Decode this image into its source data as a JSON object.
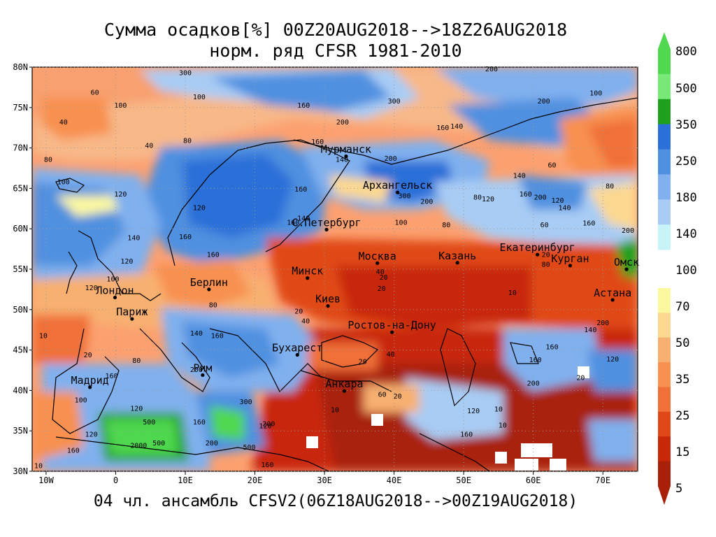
{
  "title_line1": "Сумма осадков[%] 00Z20AUG2018-->18Z26AUG2018",
  "title_line2": "норм. ряд CFSR 1981-2010",
  "footer": "04 чл. ансамбль CFSV2(06Z18AUG2018-->00Z19AUG2018)",
  "map": {
    "lon_range": [
      -12,
      75
    ],
    "lat_range": [
      30,
      80
    ],
    "lon_ticks": [
      {
        "value": -10,
        "label": "10W"
      },
      {
        "value": 0,
        "label": "0"
      },
      {
        "value": 10,
        "label": "10E"
      },
      {
        "value": 20,
        "label": "20E"
      },
      {
        "value": 30,
        "label": "30E"
      },
      {
        "value": 40,
        "label": "40E"
      },
      {
        "value": 50,
        "label": "50E"
      },
      {
        "value": 60,
        "label": "60E"
      },
      {
        "value": 70,
        "label": "70E"
      }
    ],
    "lat_ticks": [
      {
        "value": 80,
        "label": "80N"
      },
      {
        "value": 75,
        "label": "75N"
      },
      {
        "value": 70,
        "label": "70N"
      },
      {
        "value": 65,
        "label": "65N"
      },
      {
        "value": 60,
        "label": "60N"
      },
      {
        "value": 55,
        "label": "55N"
      },
      {
        "value": 50,
        "label": "50N"
      },
      {
        "value": 45,
        "label": "45N"
      },
      {
        "value": 40,
        "label": "40N"
      },
      {
        "value": 35,
        "label": "35N"
      },
      {
        "value": 30,
        "label": "30N"
      }
    ],
    "cities": [
      {
        "name": "Мурманск",
        "lon": 33.1,
        "lat": 68.97
      },
      {
        "name": "Архангельск",
        "lon": 40.5,
        "lat": 64.5
      },
      {
        "name": "С.Петербург",
        "lon": 30.3,
        "lat": 59.9
      },
      {
        "name": "Москва",
        "lon": 37.6,
        "lat": 55.75
      },
      {
        "name": "Казань",
        "lon": 49.1,
        "lat": 55.8
      },
      {
        "name": "Екатеринбург",
        "lon": 60.6,
        "lat": 56.8
      },
      {
        "name": "Курган",
        "lon": 65.3,
        "lat": 55.45
      },
      {
        "name": "Омск",
        "lon": 73.4,
        "lat": 54.99
      },
      {
        "name": "Астана",
        "lon": 71.4,
        "lat": 51.2
      },
      {
        "name": "Минск",
        "lon": 27.56,
        "lat": 53.9
      },
      {
        "name": "Киев",
        "lon": 30.5,
        "lat": 50.45
      },
      {
        "name": "Берлин",
        "lon": 13.4,
        "lat": 52.5
      },
      {
        "name": "Лондон",
        "lon": -0.1,
        "lat": 51.5
      },
      {
        "name": "Париж",
        "lon": 2.35,
        "lat": 48.85
      },
      {
        "name": "Ростов-на-Дону",
        "lon": 39.7,
        "lat": 47.2
      },
      {
        "name": "Бухарест",
        "lon": 26.1,
        "lat": 44.4
      },
      {
        "name": "Рим",
        "lon": 12.5,
        "lat": 41.9
      },
      {
        "name": "Мадрид",
        "lon": -3.7,
        "lat": 40.4
      },
      {
        "name": "Анкара",
        "lon": 32.85,
        "lat": 39.93
      }
    ],
    "contour_labels": [
      {
        "text": "300",
        "lon": 10,
        "lat": 79
      },
      {
        "text": "200",
        "lon": 54,
        "lat": 79.5
      },
      {
        "text": "60",
        "lon": -3,
        "lat": 76.6
      },
      {
        "text": "100",
        "lon": 0.7,
        "lat": 75
      },
      {
        "text": "100",
        "lon": 12,
        "lat": 76
      },
      {
        "text": "160",
        "lon": 27,
        "lat": 75
      },
      {
        "text": "300",
        "lon": 40,
        "lat": 75.5
      },
      {
        "text": "200",
        "lon": 61.5,
        "lat": 75.5
      },
      {
        "text": "100",
        "lon": 69,
        "lat": 76.5
      },
      {
        "text": "40",
        "lon": -7.5,
        "lat": 72.9
      },
      {
        "text": "40",
        "lon": 4.8,
        "lat": 70
      },
      {
        "text": "80",
        "lon": 10.3,
        "lat": 70.6
      },
      {
        "text": "200",
        "lon": 32.6,
        "lat": 72.9
      },
      {
        "text": "140",
        "lon": 49,
        "lat": 72.4
      },
      {
        "text": "160",
        "lon": 47,
        "lat": 72.2
      },
      {
        "text": "160",
        "lon": 29,
        "lat": 70.5
      },
      {
        "text": "140",
        "lon": 32.5,
        "lat": 68.3
      },
      {
        "text": "200",
        "lon": 39.5,
        "lat": 68.4
      },
      {
        "text": "60",
        "lon": 62.7,
        "lat": 67.6
      },
      {
        "text": "140",
        "lon": 58,
        "lat": 66.3
      },
      {
        "text": "80",
        "lon": -9.7,
        "lat": 68.3
      },
      {
        "text": "100",
        "lon": -7.5,
        "lat": 65.5
      },
      {
        "text": "120",
        "lon": 0.7,
        "lat": 64
      },
      {
        "text": "160",
        "lon": 26.6,
        "lat": 64.6
      },
      {
        "text": "140",
        "lon": 27,
        "lat": 61
      },
      {
        "text": "160",
        "lon": 25.5,
        "lat": 60.5
      },
      {
        "text": "300",
        "lon": 41.5,
        "lat": 63.8
      },
      {
        "text": "200",
        "lon": 44.7,
        "lat": 63.1
      },
      {
        "text": "80",
        "lon": 52,
        "lat": 63.6
      },
      {
        "text": "120",
        "lon": 53.5,
        "lat": 63.4
      },
      {
        "text": "160",
        "lon": 58.9,
        "lat": 64
      },
      {
        "text": "200",
        "lon": 61,
        "lat": 63.6
      },
      {
        "text": "120",
        "lon": 63.5,
        "lat": 63.2
      },
      {
        "text": "140",
        "lon": 64.5,
        "lat": 62.3
      },
      {
        "text": "80",
        "lon": 71,
        "lat": 65
      },
      {
        "text": "120",
        "lon": 12,
        "lat": 62.3
      },
      {
        "text": "100",
        "lon": 41,
        "lat": 60.5
      },
      {
        "text": "80",
        "lon": 47.5,
        "lat": 60.2
      },
      {
        "text": "60",
        "lon": 61.6,
        "lat": 60.2
      },
      {
        "text": "160",
        "lon": 68,
        "lat": 60.4
      },
      {
        "text": "200",
        "lon": 73.6,
        "lat": 59.5
      },
      {
        "text": "140",
        "lon": 2.6,
        "lat": 58.6
      },
      {
        "text": "160",
        "lon": 10,
        "lat": 58.7
      },
      {
        "text": "120",
        "lon": 1.6,
        "lat": 55.7
      },
      {
        "text": "160",
        "lon": 14,
        "lat": 56.5
      },
      {
        "text": "40",
        "lon": 38,
        "lat": 54.4
      },
      {
        "text": "80",
        "lon": 61.8,
        "lat": 55.3
      },
      {
        "text": "20",
        "lon": 61.8,
        "lat": 56.5
      },
      {
        "text": "20",
        "lon": 38.5,
        "lat": 53.7
      },
      {
        "text": "20",
        "lon": 38.2,
        "lat": 52.3
      },
      {
        "text": "10",
        "lon": 57,
        "lat": 51.8
      },
      {
        "text": "100",
        "lon": -0.4,
        "lat": 53.5
      },
      {
        "text": "120",
        "lon": -3.5,
        "lat": 52.4
      },
      {
        "text": "80",
        "lon": 14,
        "lat": 50.3
      },
      {
        "text": "20",
        "lon": 26.3,
        "lat": 49.5
      },
      {
        "text": "40",
        "lon": 27.3,
        "lat": 48.3
      },
      {
        "text": "10",
        "lon": -10.4,
        "lat": 46.5
      },
      {
        "text": "20",
        "lon": -4,
        "lat": 44.1
      },
      {
        "text": "80",
        "lon": 3,
        "lat": 43.4
      },
      {
        "text": "140",
        "lon": 11.6,
        "lat": 46.8
      },
      {
        "text": "160",
        "lon": 14.6,
        "lat": 46.5
      },
      {
        "text": "200",
        "lon": 11.6,
        "lat": 42.3
      },
      {
        "text": "20",
        "lon": 35.5,
        "lat": 43.3
      },
      {
        "text": "40",
        "lon": 39.5,
        "lat": 44.2
      },
      {
        "text": "200",
        "lon": 60,
        "lat": 40.6
      },
      {
        "text": "160",
        "lon": 60.3,
        "lat": 43.5
      },
      {
        "text": "160",
        "lon": 62.7,
        "lat": 45.1
      },
      {
        "text": "140",
        "lon": 68.2,
        "lat": 47.2
      },
      {
        "text": "200",
        "lon": 70,
        "lat": 48.1
      },
      {
        "text": "120",
        "lon": 71.4,
        "lat": 43.6
      },
      {
        "text": "20",
        "lon": 66.8,
        "lat": 41.3
      },
      {
        "text": "160",
        "lon": -0.6,
        "lat": 41.5
      },
      {
        "text": "100",
        "lon": -5,
        "lat": 38.5
      },
      {
        "text": "120",
        "lon": 3,
        "lat": 37.5
      },
      {
        "text": "500",
        "lon": 4.8,
        "lat": 35.8
      },
      {
        "text": "2000",
        "lon": 3.3,
        "lat": 32.9
      },
      {
        "text": "500",
        "lon": 6.2,
        "lat": 33.2
      },
      {
        "text": "200",
        "lon": 13.8,
        "lat": 33.2
      },
      {
        "text": "500",
        "lon": 19.2,
        "lat": 32.7
      },
      {
        "text": "160",
        "lon": 12,
        "lat": 35.8
      },
      {
        "text": "160",
        "lon": -6.1,
        "lat": 32.3
      },
      {
        "text": "120",
        "lon": -3.5,
        "lat": 34.3
      },
      {
        "text": "300",
        "lon": 18.7,
        "lat": 38.3
      },
      {
        "text": "120",
        "lon": 21.5,
        "lat": 35.3
      },
      {
        "text": "200",
        "lon": 22,
        "lat": 35.6
      },
      {
        "text": "160",
        "lon": 21.8,
        "lat": 30.5
      },
      {
        "text": "10",
        "lon": 31.5,
        "lat": 37.3
      },
      {
        "text": "60",
        "lon": 38.3,
        "lat": 39.2
      },
      {
        "text": "20",
        "lon": 40.5,
        "lat": 39
      },
      {
        "text": "10",
        "lon": 55,
        "lat": 37.4
      },
      {
        "text": "120",
        "lon": 51.4,
        "lat": 37.2
      },
      {
        "text": "160",
        "lon": 50.4,
        "lat": 34.3
      },
      {
        "text": "10",
        "lon": 55.6,
        "lat": 35.4
      },
      {
        "text": "10",
        "lon": -11.1,
        "lat": 30.4
      }
    ]
  },
  "colorbar": {
    "labels": [
      "800",
      "500",
      "350",
      "250",
      "180",
      "140",
      "100",
      "70",
      "50",
      "35",
      "25",
      "15",
      "5"
    ],
    "colors_top": [
      "#50d850",
      "#78e878",
      "#1ea01e",
      "#2a70d8",
      "#5090e0",
      "#80b0ee",
      "#a8ccf4",
      "#c8f4f8"
    ],
    "colors_bottom": [
      "#fcf8a0",
      "#fcd890",
      "#f8b070",
      "#f89050",
      "#f07038",
      "#e04818",
      "#c82808",
      "#a82008"
    ]
  }
}
